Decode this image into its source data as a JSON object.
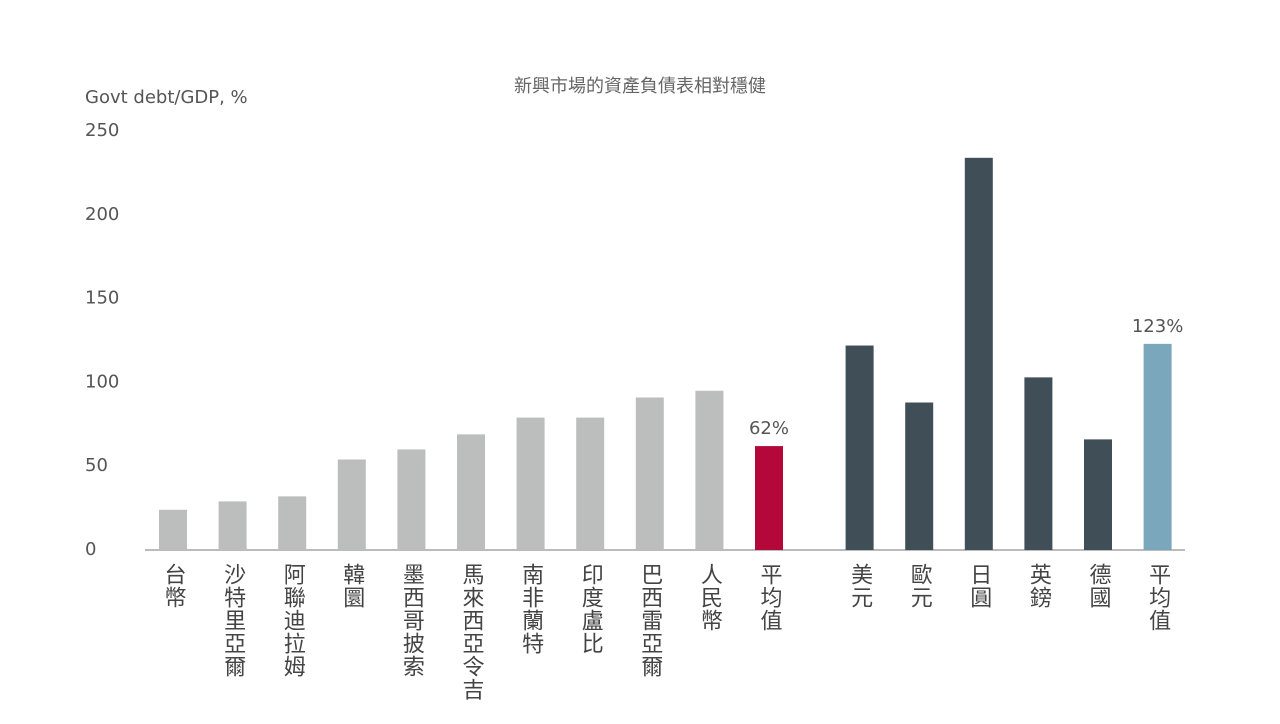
{
  "chart_data": {
    "type": "bar",
    "title": "新興市場的資產負債表相對穩健",
    "y_label": "Govt debt/GDP, %",
    "categories": [
      "台幣",
      "沙特里亞爾",
      "阿聯迪拉姆",
      "韓圜",
      "墨西哥披索",
      "馬來西亞令吉",
      "南非蘭特",
      "印度盧比",
      "巴西雷亞爾",
      "人民幣",
      "平均值",
      "美元",
      "歐元",
      "日圓",
      "英鎊",
      "德國",
      "平均值"
    ],
    "values": [
      24,
      29,
      32,
      54,
      60,
      69,
      79,
      79,
      91,
      95,
      62,
      122,
      88,
      234,
      103,
      66,
      123
    ],
    "value_labels": [
      null,
      null,
      null,
      null,
      null,
      null,
      null,
      null,
      null,
      null,
      "62%",
      null,
      null,
      null,
      null,
      null,
      "123%"
    ],
    "colors": [
      "#bcbdbd",
      "#bcbdbd",
      "#bcbdbd",
      "#bcbdbd",
      "#bcbdbd",
      "#bcbdbd",
      "#bcbdbd",
      "#bcbdbd",
      "#bcbdbd",
      "#bcbdbd",
      "#b5083a",
      "#3f4e57",
      "#3f4e57",
      "#3f4e57",
      "#3f4e57",
      "#3f4e57",
      "#7ba7bd"
    ],
    "ylim": [
      0,
      250
    ],
    "yticks": [
      0,
      50,
      100,
      150,
      200,
      250
    ],
    "grid": false
  }
}
